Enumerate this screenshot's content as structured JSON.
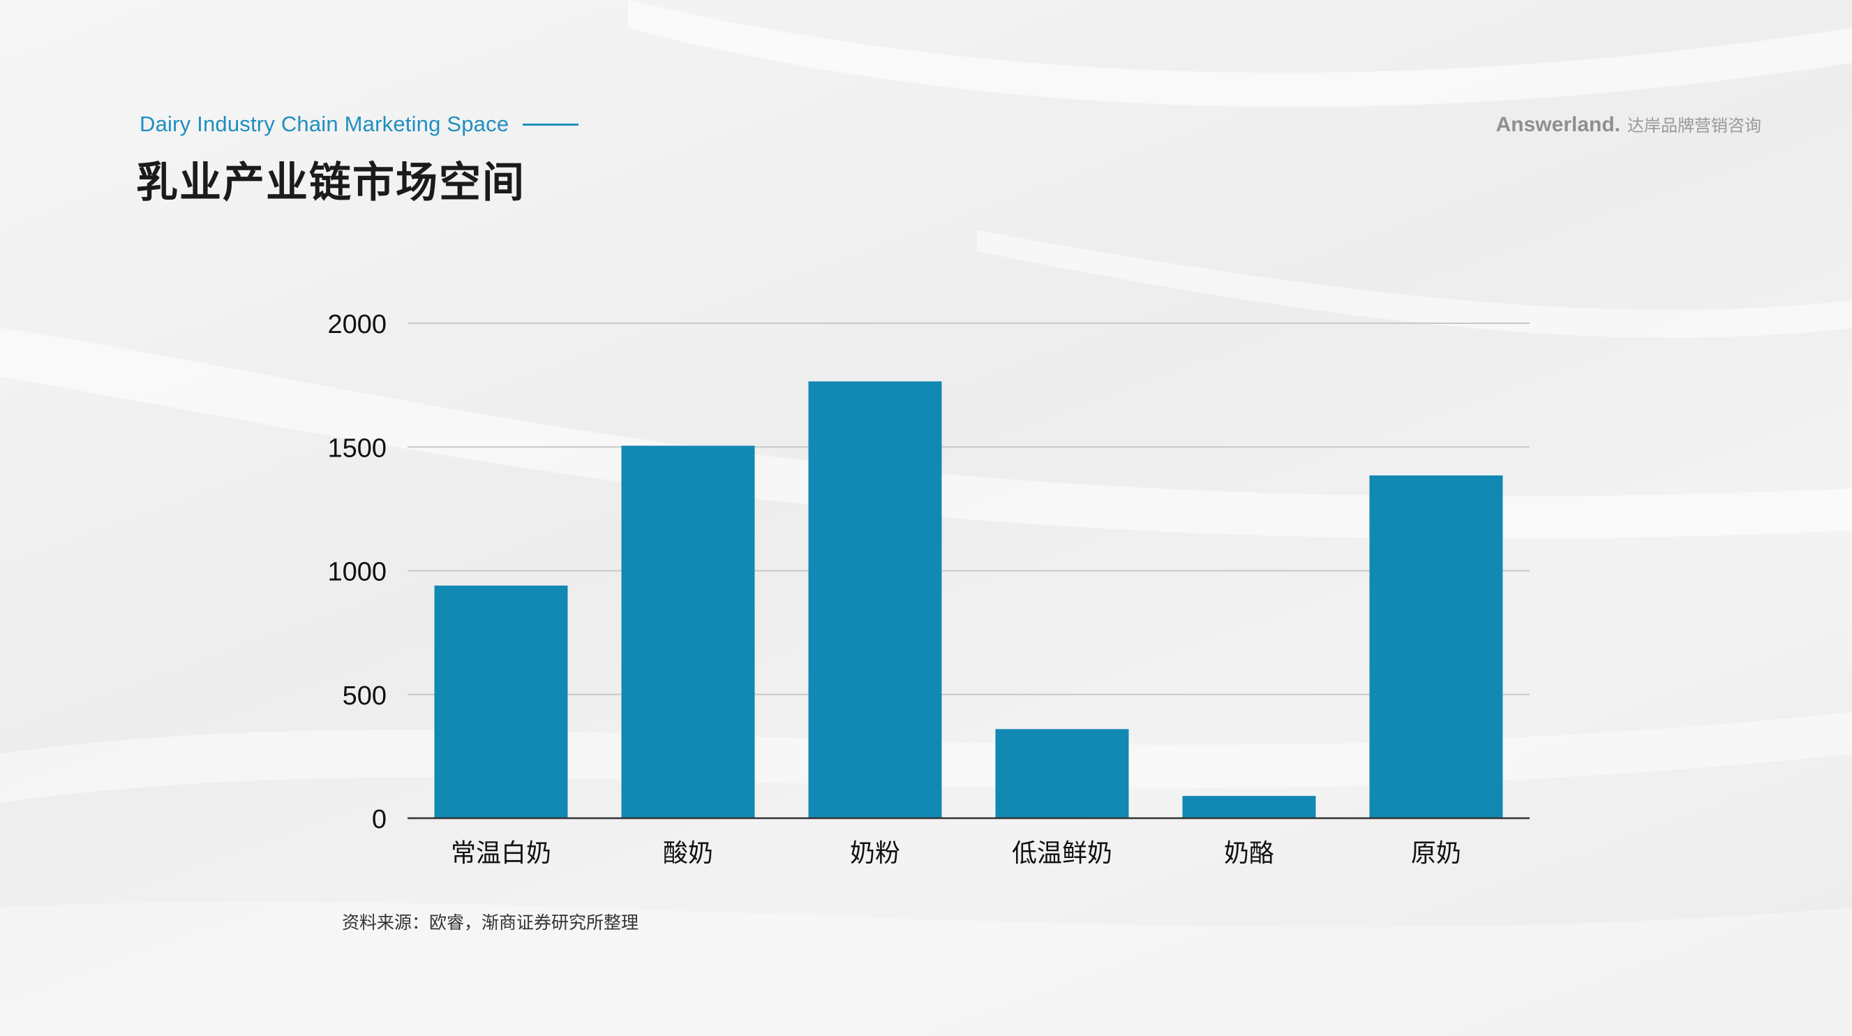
{
  "header": {
    "subtitle": "Dairy Industry Chain Marketing Space",
    "title": "乳业产业链市场空间"
  },
  "brand": {
    "name": "Answerland.",
    "tagline": "达岸品牌营销咨询"
  },
  "source_note": "资料来源：欧睿，渐商证券研究所整理",
  "colors": {
    "bar": "#1289b3",
    "accent": "#1f8fc0",
    "grid": "#c8c8c8",
    "axis": "#333333"
  },
  "chart_data": {
    "type": "bar",
    "categories": [
      "常温白奶",
      "酸奶",
      "奶粉",
      "低温鲜奶",
      "奶酪",
      "原奶"
    ],
    "values": [
      940,
      1505,
      1765,
      360,
      90,
      1385
    ],
    "yticks": [
      0,
      500,
      1000,
      1500,
      2000
    ],
    "ylim": [
      0,
      2000
    ],
    "grid": true,
    "legend": "none"
  }
}
